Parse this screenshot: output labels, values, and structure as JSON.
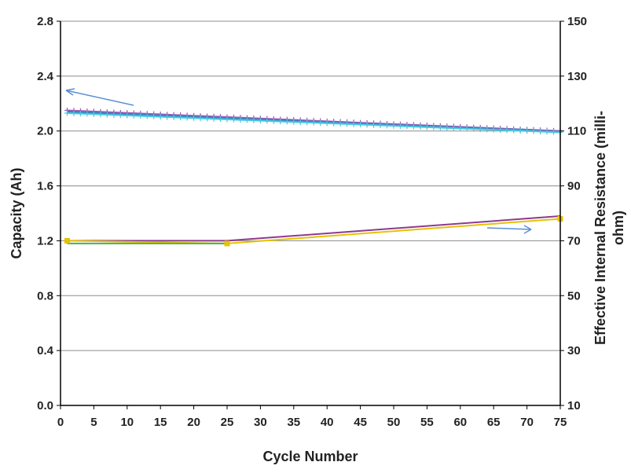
{
  "chart_data": {
    "type": "line",
    "xlabel": "Cycle Number",
    "ylabel": "Capacity (Ah)",
    "y2label_line1": "Effective Internal Resistance (milli-",
    "y2label_line2": "ohm)",
    "xlim": [
      0,
      75
    ],
    "ylim": [
      0,
      2.8
    ],
    "y2lim": [
      10,
      150
    ],
    "x_ticks": [
      0,
      5,
      10,
      15,
      20,
      25,
      30,
      35,
      40,
      45,
      50,
      55,
      60,
      65,
      70,
      75
    ],
    "x_tick_labels": [
      "0",
      "5",
      "10",
      "15",
      "20",
      "25",
      "30",
      "35",
      "40",
      "45",
      "50",
      "55",
      "60",
      "65",
      "70",
      "75"
    ],
    "y_ticks": [
      0,
      0.4,
      0.8,
      1.2,
      1.6,
      2.0,
      2.4,
      2.8
    ],
    "y_tick_labels": [
      "0.0",
      "0.4",
      "0.8",
      "1.2",
      "1.6",
      "2.0",
      "2.4",
      "2.8"
    ],
    "y2_ticks": [
      10,
      30,
      50,
      70,
      90,
      110,
      130,
      150
    ],
    "y2_tick_labels": [
      "10",
      "30",
      "50",
      "70",
      "90",
      "110",
      "130",
      "150"
    ],
    "grid": "horizontal",
    "capacity_series": [
      {
        "color": "#9b59b6",
        "marker": "+",
        "x_start": 1,
        "x_end": 75,
        "y_start": 2.15,
        "y_end": 2.0
      },
      {
        "color": "#2e86c1",
        "marker": "none",
        "x_start": 1,
        "x_end": 75,
        "y_start": 2.14,
        "y_end": 2.0
      },
      {
        "color": "#48c9e0",
        "marker": "+",
        "x_start": 1,
        "x_end": 75,
        "y_start": 2.13,
        "y_end": 1.99
      }
    ],
    "resistance_series": [
      {
        "color": "#8e3a8e",
        "marker": "none",
        "x": [
          1,
          25,
          75
        ],
        "y": [
          70,
          70,
          79
        ]
      },
      {
        "color": "#e6c200",
        "marker": "square",
        "x": [
          1,
          25,
          75
        ],
        "y": [
          70,
          69,
          78
        ]
      },
      {
        "color": "#4caf50",
        "marker": "none",
        "x": [
          1,
          25
        ],
        "y": [
          69,
          69
        ]
      }
    ],
    "annotations": [
      {
        "type": "arrow",
        "points_to": "left-axis",
        "color": "#5b8fd4"
      },
      {
        "type": "arrow",
        "points_to": "right-axis",
        "color": "#5b8fd4"
      }
    ]
  }
}
